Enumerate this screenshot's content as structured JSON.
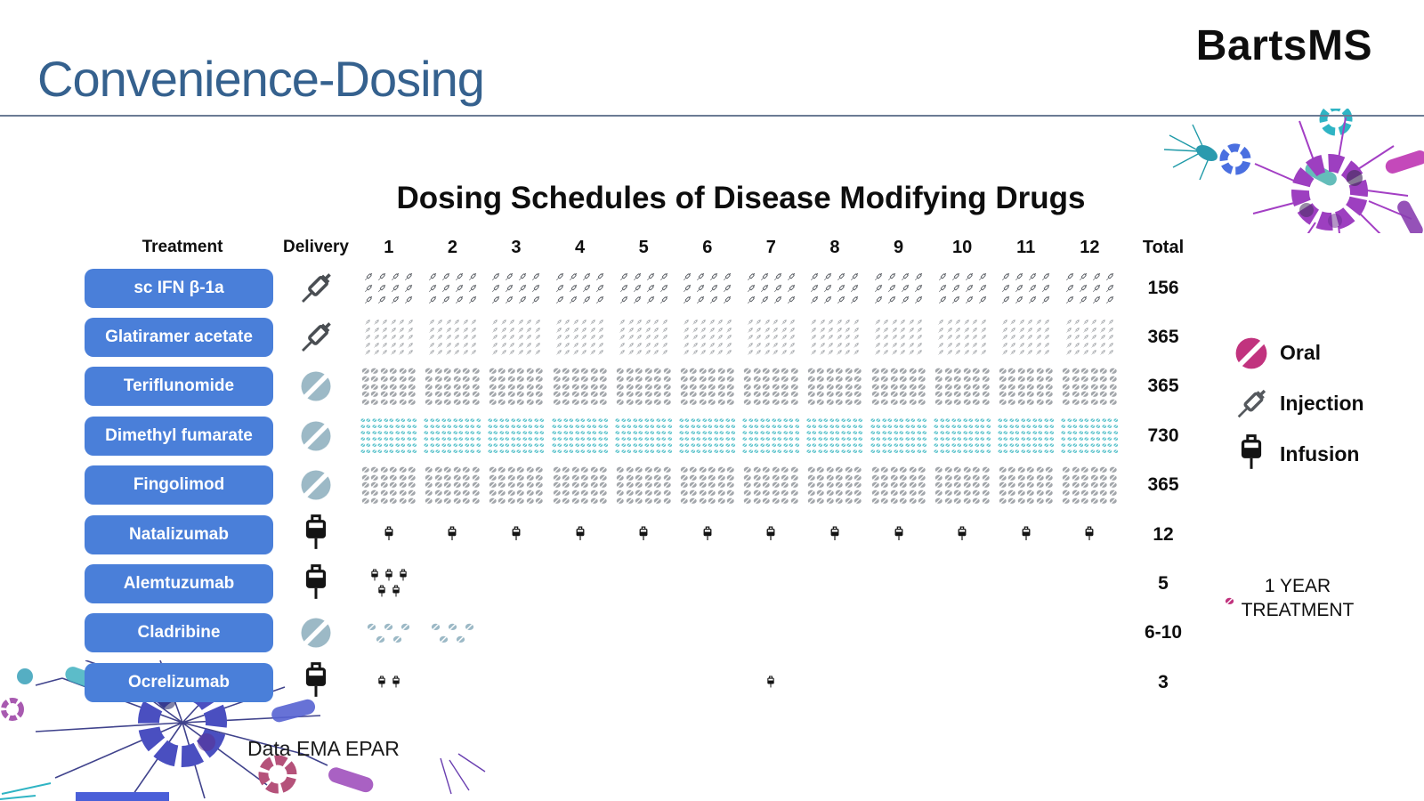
{
  "slide": {
    "title": "Convenience-Dosing",
    "logo": "BartsMS",
    "footnote": "Data EMA EPAR"
  },
  "chart_data": {
    "type": "pictogram-table",
    "title": "Dosing Schedules of Disease Modifying Drugs",
    "col_headers": {
      "treatment": "Treatment",
      "delivery": "Delivery",
      "total": "Total"
    },
    "months": [
      "1",
      "2",
      "3",
      "4",
      "5",
      "6",
      "7",
      "8",
      "9",
      "10",
      "11",
      "12"
    ],
    "rows": [
      {
        "treatment": "sc IFN β-1a",
        "delivery": "injection",
        "icon": "syringe",
        "color": "#5c6066",
        "total": "156",
        "pattern": {
          "cols": 4,
          "rows": 3,
          "size": 12,
          "cg": 3,
          "rg": 1
        }
      },
      {
        "treatment": "Glatiramer acetate",
        "delivery": "injection",
        "icon": "syringe",
        "color": "#8b8f94",
        "total": "365",
        "pattern": {
          "cols": 6,
          "rows": 5,
          "size": 8,
          "cg": 1.5,
          "rg": 0.5
        }
      },
      {
        "treatment": "Teriflunomide",
        "delivery": "oral",
        "icon": "pill",
        "color": "#a3a7ab",
        "total": "365",
        "pattern": {
          "cols": 6,
          "rows": 5,
          "size": 9.5,
          "cg": 1,
          "rg": 1.2
        }
      },
      {
        "treatment": "Dimethyl fumarate",
        "delivery": "oral",
        "icon": "pill",
        "color": "#5fc4cd",
        "total": "730",
        "pattern": {
          "cols": 10,
          "rows": 6,
          "size": 5.5,
          "cg": 1,
          "rg": 2.6
        }
      },
      {
        "treatment": "Fingolimod",
        "delivery": "oral",
        "icon": "pill",
        "color": "#a3a7ab",
        "total": "365",
        "pattern": {
          "cols": 6,
          "rows": 5,
          "size": 9.5,
          "cg": 1,
          "rg": 1.2
        }
      },
      {
        "treatment": "Natalizumab",
        "delivery": "infusion",
        "icon": "bag",
        "color": "#141414",
        "total": "12",
        "pattern": {
          "cols": 1,
          "rows": 1,
          "size": 12,
          "cg": 0,
          "rg": 0
        }
      },
      {
        "treatment": "Alemtuzumab",
        "delivery": "infusion",
        "icon": "bag",
        "color": "#141414",
        "total": "5",
        "custom": {
          "1": [
            3,
            2
          ]
        },
        "size": 10,
        "custom_gap": {
          "h": 6,
          "v": 2
        }
      },
      {
        "treatment": "Cladribine",
        "delivery": "oral",
        "icon": "pill",
        "color": "#9cb9c6",
        "total": "6-10",
        "custom": {
          "1": [
            3,
            2
          ],
          "2": [
            3,
            2
          ]
        },
        "size": 11,
        "custom_gap": {
          "h": 8,
          "v": 5
        }
      },
      {
        "treatment": "Ocrelizumab",
        "delivery": "infusion",
        "icon": "bag",
        "color": "#141414",
        "total": "3",
        "custom": {
          "1": [
            2
          ],
          "7": [
            1
          ]
        },
        "size": 10,
        "custom_gap": {
          "h": 6,
          "v": 2
        }
      }
    ]
  },
  "legend": {
    "items": [
      {
        "icon": "pill-circle",
        "color": "#c1337e",
        "label": "Oral"
      },
      {
        "icon": "syringe",
        "color": "#55595e",
        "label": "Injection"
      },
      {
        "icon": "bag",
        "color": "#141414",
        "label": "Infusion"
      }
    ],
    "note": "1 YEAR TREATMENT",
    "note_icon_color": "#c1337e"
  },
  "colors": {
    "accent_blue": "#4a7fd9",
    "title_blue": "#35618e",
    "divider": "#6b7b94"
  }
}
